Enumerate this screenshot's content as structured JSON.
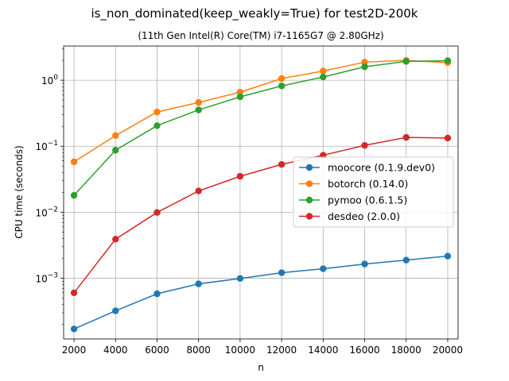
{
  "chart_data": {
    "type": "line",
    "title": "is_non_dominated(keep_weakly=True) for test2D-200k",
    "subtitle": "(11th Gen Intel(R) Core(TM) i7-1165G7 @ 2.80GHz)",
    "xlabel": "n",
    "ylabel": "CPU time (seconds)",
    "yscale": "log",
    "grid": true,
    "legend_position": "center-right",
    "x": [
      2000,
      4000,
      6000,
      8000,
      10000,
      12000,
      14000,
      16000,
      18000,
      20000
    ],
    "xlim": [
      1500,
      20500
    ],
    "ylim": [
      0.00012,
      3.3
    ],
    "x_ticks": [
      "2000",
      "4000",
      "6000",
      "8000",
      "10000",
      "12000",
      "14000",
      "16000",
      "18000",
      "20000"
    ],
    "y_ticks": [
      {
        "value": 0.001,
        "mantissa": "10",
        "exp": "−3"
      },
      {
        "value": 0.01,
        "mantissa": "10",
        "exp": "−2"
      },
      {
        "value": 0.1,
        "mantissa": "10",
        "exp": "−1"
      },
      {
        "value": 1,
        "mantissa": "10",
        "exp": "0"
      }
    ],
    "series": [
      {
        "name": "moocore (0.1.9.dev0)",
        "color": "#1f77b4",
        "values": [
          0.00017,
          0.00032,
          0.00058,
          0.00082,
          0.00099,
          0.00121,
          0.00139,
          0.00164,
          0.00188,
          0.00216
        ]
      },
      {
        "name": "botorch (0.14.0)",
        "color": "#ff7f0e",
        "values": [
          0.058,
          0.145,
          0.33,
          0.46,
          0.66,
          1.06,
          1.38,
          1.88,
          2.0,
          1.85
        ]
      },
      {
        "name": "pymoo (0.6.1.5)",
        "color": "#2ca02c",
        "values": [
          0.018,
          0.087,
          0.205,
          0.355,
          0.56,
          0.82,
          1.12,
          1.6,
          1.93,
          1.98
        ]
      },
      {
        "name": "desdeo (2.0.0)",
        "color": "#d62728",
        "values": [
          0.0006,
          0.0039,
          0.0099,
          0.021,
          0.035,
          0.053,
          0.073,
          0.103,
          0.136,
          0.133
        ]
      }
    ]
  }
}
